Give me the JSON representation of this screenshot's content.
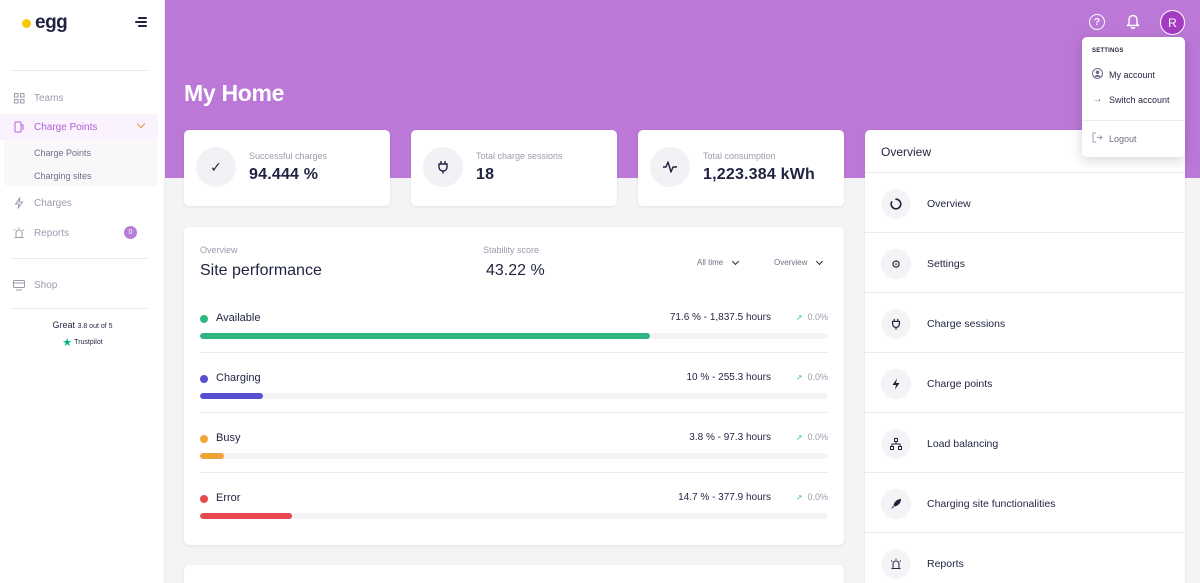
{
  "brand": {
    "name": "egg"
  },
  "sidebar": {
    "items": [
      {
        "label": "Teams",
        "icon": "grid-icon"
      },
      {
        "label": "Charge Points",
        "icon": "charger-icon",
        "active": true
      },
      {
        "label": "Charges",
        "icon": "bolt-icon"
      },
      {
        "label": "Reports",
        "icon": "alarm-icon",
        "badge": "0"
      },
      {
        "label": "Shop",
        "icon": "shop-icon"
      }
    ],
    "sub_items": [
      "Charge Points",
      "Charging sites"
    ]
  },
  "trustpilot": {
    "word": "Great",
    "rating": "3.8 out of 5",
    "brand": "Trustpilot"
  },
  "header": {
    "title": "My Home",
    "avatar_initial": "R"
  },
  "stats": [
    {
      "label": "Successful charges",
      "value": "94.444 %",
      "icon": "check-icon"
    },
    {
      "label": "Total charge sessions",
      "value": "18",
      "icon": "plug-icon"
    },
    {
      "label": "Total consumption",
      "value": "1,223.384 kWh",
      "icon": "pulse-icon"
    }
  ],
  "performance": {
    "overline": "Overview",
    "title": "Site performance",
    "score_label": "Stability score",
    "score_value": "43.22 %",
    "period_select": "All time",
    "view_select": "Overview",
    "metrics": [
      {
        "name": "Available",
        "value": "71.6 % - 1,837.5 hours",
        "trend": "0.0%",
        "percent": 71.6,
        "color": "#2fb57e"
      },
      {
        "name": "Charging",
        "value": "10 % - 255.3 hours",
        "trend": "0.0%",
        "percent": 10,
        "color": "#5a4fcf"
      },
      {
        "name": "Busy",
        "value": "3.8 % - 97.3 hours",
        "trend": "0.0%",
        "percent": 3.8,
        "color": "#f0a33a"
      },
      {
        "name": "Error",
        "value": "14.7 % - 377.9 hours",
        "trend": "0.0%",
        "percent": 14.7,
        "color": "#e5484d"
      }
    ]
  },
  "overview_panel": {
    "title": "Overview",
    "items": [
      {
        "label": "Overview",
        "icon": "spinner-icon"
      },
      {
        "label": "Settings",
        "icon": "gear-icon"
      },
      {
        "label": "Charge sessions",
        "icon": "plug-icon"
      },
      {
        "label": "Charge points",
        "icon": "bolt-icon"
      },
      {
        "label": "Load balancing",
        "icon": "network-icon"
      },
      {
        "label": "Charging site functionalities",
        "icon": "rocket-icon"
      },
      {
        "label": "Reports",
        "icon": "alarm-icon"
      }
    ]
  },
  "account_menu": {
    "heading": "SETTINGS",
    "my_account": "My account",
    "switch_account": "Switch account",
    "logout": "Logout"
  },
  "colors": {
    "accent": "#bc78d6",
    "active": "#b05fd6",
    "brand_dot": "#f6c900"
  }
}
